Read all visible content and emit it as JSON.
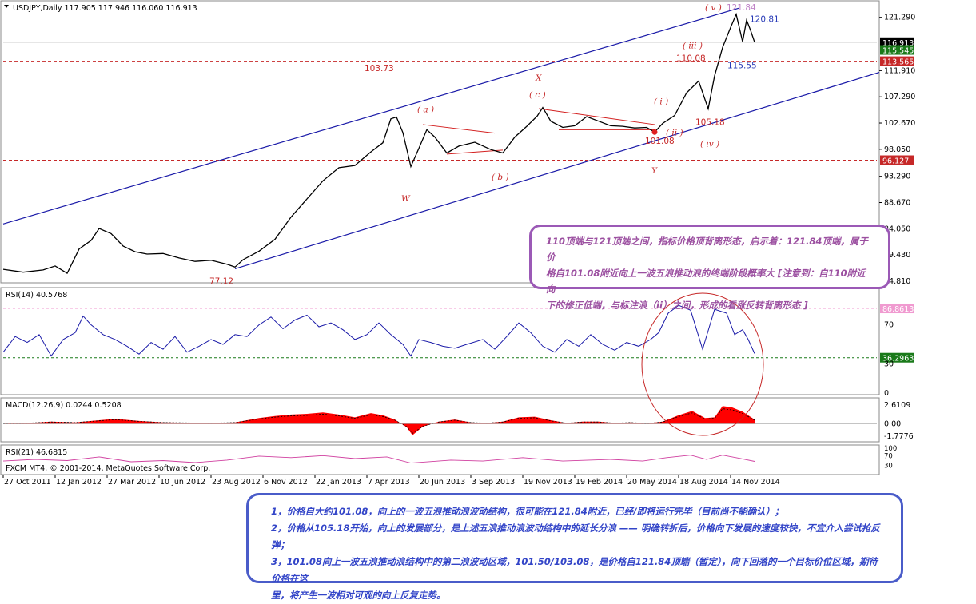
{
  "chart_data": {
    "type": "line",
    "symbol_header": "USDJPY,Daily  117.905 117.946 116.060 116.913",
    "x_tick_labels": [
      "27 Oct 2011",
      "12 Jan 2012",
      "27 Mar 2012",
      "10 Jun 2012",
      "23 Aug 2012",
      "6 Nov 2012",
      "22 Jan 2013",
      "7 Apr 2013",
      "20 Jun 2013",
      "3 Sep 2013",
      "19 Nov 2013",
      "19 Feb 2014",
      "20 May 2014",
      "18 Aug 2014",
      "14 Nov 2014"
    ],
    "price_axis_ticks": [
      "121.290",
      "116.913",
      "115.545",
      "113.565",
      "111.910",
      "107.290",
      "102.670",
      "98.050",
      "96.127",
      "93.290",
      "88.670",
      "84.050",
      "79.430",
      "74.810"
    ],
    "price_ylim": [
      74.81,
      123.5
    ],
    "price_series": [
      [
        0,
        76.9
      ],
      [
        25,
        76.4
      ],
      [
        50,
        76.8
      ],
      [
        65,
        77.5
      ],
      [
        80,
        76.2
      ],
      [
        95,
        80.5
      ],
      [
        110,
        82.0
      ],
      [
        120,
        84.1
      ],
      [
        135,
        83.2
      ],
      [
        150,
        81.0
      ],
      [
        165,
        80.0
      ],
      [
        180,
        79.6
      ],
      [
        200,
        79.7
      ],
      [
        220,
        78.9
      ],
      [
        240,
        78.3
      ],
      [
        260,
        78.5
      ],
      [
        280,
        77.8
      ],
      [
        290,
        77.3
      ],
      [
        300,
        78.6
      ],
      [
        320,
        80.1
      ],
      [
        340,
        82.2
      ],
      [
        360,
        86.1
      ],
      [
        380,
        89.3
      ],
      [
        400,
        92.5
      ],
      [
        420,
        94.8
      ],
      [
        440,
        95.2
      ],
      [
        460,
        97.6
      ],
      [
        475,
        99.2
      ],
      [
        485,
        103.4
      ],
      [
        492,
        103.73
      ],
      [
        500,
        101.0
      ],
      [
        510,
        95.0
      ],
      [
        520,
        98.2
      ],
      [
        530,
        101.5
      ],
      [
        540,
        100.2
      ],
      [
        555,
        97.4
      ],
      [
        570,
        98.6
      ],
      [
        590,
        99.3
      ],
      [
        610,
        98.0
      ],
      [
        625,
        97.4
      ],
      [
        640,
        100.2
      ],
      [
        655,
        102.1
      ],
      [
        668,
        103.9
      ],
      [
        675,
        105.4
      ],
      [
        685,
        103.0
      ],
      [
        700,
        101.9
      ],
      [
        715,
        102.2
      ],
      [
        730,
        103.8
      ],
      [
        745,
        103.0
      ],
      [
        760,
        102.2
      ],
      [
        775,
        102.1
      ],
      [
        790,
        101.8
      ],
      [
        805,
        101.9
      ],
      [
        815,
        101.08
      ],
      [
        825,
        102.6
      ],
      [
        840,
        104.0
      ],
      [
        855,
        108.0
      ],
      [
        870,
        110.08
      ],
      [
        882,
        105.18
      ],
      [
        890,
        111.0
      ],
      [
        900,
        116.0
      ],
      [
        910,
        119.5
      ],
      [
        917,
        121.84
      ],
      [
        925,
        117.0
      ],
      [
        930,
        120.81
      ],
      [
        935,
        119.0
      ],
      [
        940,
        116.913
      ]
    ],
    "wave_labels": [
      "103.73",
      "77.12",
      "110.08",
      "105.18",
      "101.08",
      "115.55",
      "120.81",
      "121.84"
    ],
    "elliott_labels": [
      "( v )",
      "( iii )",
      "( i )",
      "( ii )",
      "( iv )",
      "( a )",
      "( b )",
      "( c )",
      "X",
      "W",
      "Y"
    ],
    "price_badges": [
      {
        "value": "116.913",
        "color": "#000000"
      },
      {
        "value": "115.545",
        "color": "#1a7a1a"
      },
      {
        "value": "113.565",
        "color": "#c62828"
      },
      {
        "value": "96.127",
        "color": "#c62828"
      }
    ],
    "rsi14": {
      "label": "RSI(14) 40.5768",
      "ticks": [
        "86.8613",
        "70",
        "36.2963",
        "30",
        "0"
      ],
      "badges": [
        {
          "value": "86.8613",
          "color": "#f09ad0"
        },
        {
          "value": "36.2963",
          "color": "#1a7a1a"
        }
      ],
      "series": [
        [
          0,
          42
        ],
        [
          15,
          58
        ],
        [
          30,
          52
        ],
        [
          45,
          60
        ],
        [
          60,
          38
        ],
        [
          75,
          55
        ],
        [
          90,
          62
        ],
        [
          100,
          79
        ],
        [
          110,
          70
        ],
        [
          125,
          60
        ],
        [
          140,
          55
        ],
        [
          155,
          48
        ],
        [
          170,
          40
        ],
        [
          185,
          52
        ],
        [
          200,
          45
        ],
        [
          215,
          58
        ],
        [
          230,
          42
        ],
        [
          245,
          48
        ],
        [
          260,
          55
        ],
        [
          275,
          50
        ],
        [
          290,
          60
        ],
        [
          305,
          58
        ],
        [
          320,
          70
        ],
        [
          335,
          78
        ],
        [
          350,
          66
        ],
        [
          365,
          75
        ],
        [
          380,
          80
        ],
        [
          395,
          68
        ],
        [
          410,
          72
        ],
        [
          425,
          65
        ],
        [
          440,
          55
        ],
        [
          455,
          60
        ],
        [
          470,
          72
        ],
        [
          485,
          60
        ],
        [
          500,
          50
        ],
        [
          510,
          38
        ],
        [
          520,
          55
        ],
        [
          535,
          52
        ],
        [
          550,
          48
        ],
        [
          565,
          46
        ],
        [
          580,
          50
        ],
        [
          600,
          55
        ],
        [
          615,
          45
        ],
        [
          630,
          58
        ],
        [
          645,
          72
        ],
        [
          660,
          62
        ],
        [
          675,
          48
        ],
        [
          690,
          42
        ],
        [
          705,
          55
        ],
        [
          720,
          48
        ],
        [
          735,
          60
        ],
        [
          750,
          50
        ],
        [
          765,
          44
        ],
        [
          780,
          52
        ],
        [
          795,
          48
        ],
        [
          810,
          55
        ],
        [
          820,
          62
        ],
        [
          832,
          82
        ],
        [
          845,
          90
        ],
        [
          860,
          85
        ],
        [
          875,
          45
        ],
        [
          890,
          86
        ],
        [
          905,
          82
        ],
        [
          915,
          60
        ],
        [
          925,
          65
        ],
        [
          932,
          55
        ],
        [
          940,
          40.58
        ]
      ]
    },
    "macd": {
      "label": "MACD(12,26,9) 0.0244 0.5208",
      "ticks": [
        "2.6109",
        "0.00",
        "-1.7776"
      ],
      "series": [
        [
          0,
          0.05
        ],
        [
          30,
          0.1
        ],
        [
          60,
          0.3
        ],
        [
          90,
          0.2
        ],
        [
          120,
          0.5
        ],
        [
          140,
          0.7
        ],
        [
          170,
          0.4
        ],
        [
          200,
          0.2
        ],
        [
          230,
          0.15
        ],
        [
          260,
          0.1
        ],
        [
          290,
          0.2
        ],
        [
          320,
          0.8
        ],
        [
          340,
          1.1
        ],
        [
          360,
          1.3
        ],
        [
          380,
          1.4
        ],
        [
          400,
          1.6
        ],
        [
          420,
          1.3
        ],
        [
          440,
          0.9
        ],
        [
          460,
          1.5
        ],
        [
          475,
          1.2
        ],
        [
          490,
          0.6
        ],
        [
          505,
          -0.5
        ],
        [
          512,
          -1.6
        ],
        [
          525,
          -0.4
        ],
        [
          545,
          0.3
        ],
        [
          565,
          0.6
        ],
        [
          585,
          0.2
        ],
        [
          605,
          0.1
        ],
        [
          625,
          0.3
        ],
        [
          645,
          0.9
        ],
        [
          665,
          1.0
        ],
        [
          685,
          0.5
        ],
        [
          705,
          0.1
        ],
        [
          725,
          0.3
        ],
        [
          745,
          0.3
        ],
        [
          765,
          0.1
        ],
        [
          785,
          0.2
        ],
        [
          805,
          0.05
        ],
        [
          825,
          0.3
        ],
        [
          845,
          1.2
        ],
        [
          862,
          1.8
        ],
        [
          878,
          0.8
        ],
        [
          890,
          0.9
        ],
        [
          900,
          2.5
        ],
        [
          912,
          2.3
        ],
        [
          925,
          1.7
        ],
        [
          940,
          0.6
        ]
      ]
    },
    "rsi21": {
      "label": "RSI(21) 46.6815",
      "ticks": [
        "100",
        "70",
        "30"
      ],
      "series": [
        [
          0,
          48
        ],
        [
          40,
          55
        ],
        [
          80,
          50
        ],
        [
          120,
          65
        ],
        [
          160,
          45
        ],
        [
          200,
          50
        ],
        [
          240,
          42
        ],
        [
          280,
          52
        ],
        [
          320,
          68
        ],
        [
          360,
          62
        ],
        [
          400,
          70
        ],
        [
          440,
          58
        ],
        [
          480,
          65
        ],
        [
          510,
          40
        ],
        [
          560,
          52
        ],
        [
          600,
          48
        ],
        [
          650,
          62
        ],
        [
          700,
          48
        ],
        [
          760,
          55
        ],
        [
          800,
          48
        ],
        [
          830,
          62
        ],
        [
          860,
          72
        ],
        [
          880,
          55
        ],
        [
          900,
          72
        ],
        [
          920,
          60
        ],
        [
          940,
          46.68
        ]
      ]
    },
    "copyright": "FXCM MT4, © 2001-2014, MetaQuotes Software Corp."
  },
  "annotation_note": {
    "lines": [
      "110顶端与121顶端之间，指标价格顶背离形态，启示着：121.84顶端，属于价",
      "格自101.08附近向上一波五浪推动浪的终端阶段概率大 [注意到：自110附近向",
      "下的修正低端，与标注浪（ii）之间，形成的看涨反转背离形态 ]"
    ]
  },
  "summary_note": {
    "lines": [
      "1，价格自大约101.08，向上的一波五浪推动浪波动结构，很可能在121.84附近，已经/即将运行完毕（目前尚不能确认）；",
      "2，价格从105.18开始，向上的发展部分，是上述五浪推动浪波动结构中的延长分浪 —— 明确转折后，价格向下发展的速度较快，不宜介入尝试抢反弹；",
      "3，101.08向上一波五浪推动浪结构中的第二浪波动区域，101.50/103.08，是价格自121.84顶端（暂定），向下回落的一个目标价位区域，期待价格在这",
      "里，将产生一波相对可观的向上反复走势。"
    ]
  },
  "colors": {
    "channel": "#1a1aa8",
    "rsi_line": "#1a1aa8",
    "macd_fill": "#ff0000",
    "rsi21_line": "#d040a0",
    "wave_label": "#c62828",
    "ellipse": "#c62828"
  }
}
